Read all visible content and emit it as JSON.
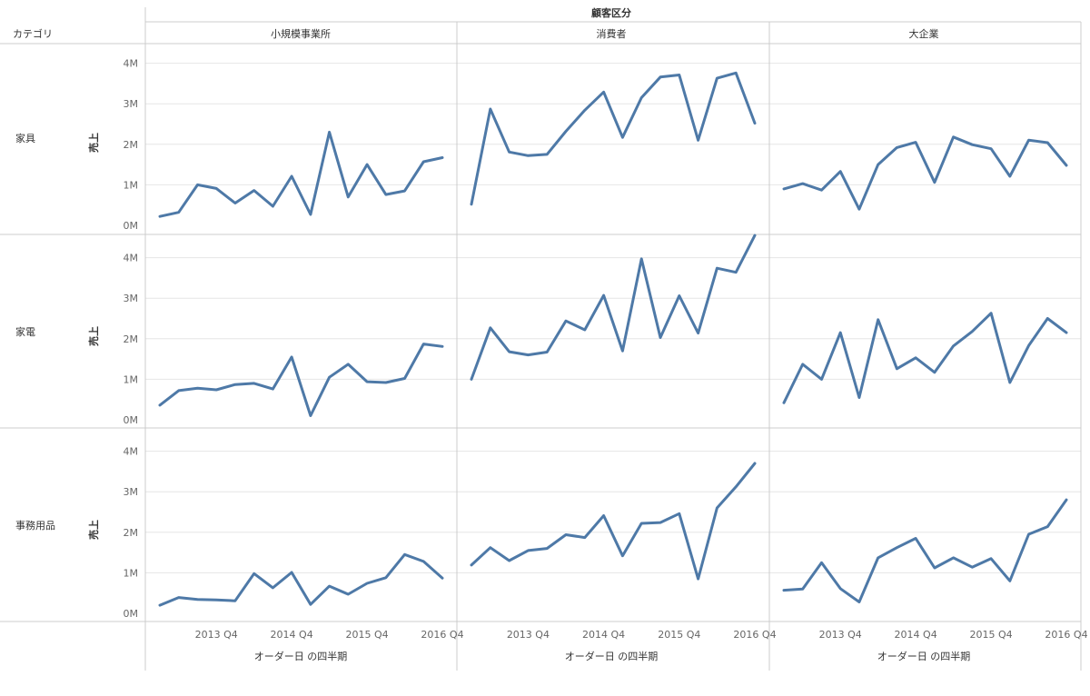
{
  "header": {
    "column_field": "顧客区分",
    "row_field": "カテゴリ"
  },
  "columns": [
    "小規模事業所",
    "消費者",
    "大企業"
  ],
  "rows": [
    "家具",
    "家電",
    "事務用品"
  ],
  "y_axis_label": "売上",
  "x_axis_label": "オーダー日 の四半期",
  "y_ticks": [
    "0M",
    "1M",
    "2M",
    "3M",
    "4M"
  ],
  "x_ticks": [
    "2013 Q4",
    "2014 Q4",
    "2015 Q4",
    "2016 Q4"
  ],
  "colors": {
    "line": "#4e79a7",
    "grid": "#e6e6e6",
    "divider": "#cccccc"
  },
  "chart_data": {
    "type": "line",
    "title": "",
    "xlabel": "オーダー日 の四半期",
    "ylabel": "売上",
    "ylim": [
      0,
      4.5
    ],
    "y_unit": "M",
    "x": [
      "2013 Q1",
      "2013 Q2",
      "2013 Q3",
      "2013 Q4",
      "2014 Q1",
      "2014 Q2",
      "2014 Q3",
      "2014 Q4",
      "2015 Q1",
      "2015 Q2",
      "2015 Q3",
      "2015 Q4",
      "2016 Q1",
      "2016 Q2",
      "2016 Q3",
      "2016 Q4"
    ],
    "x_tick_labels": [
      "2013 Q4",
      "2014 Q4",
      "2015 Q4",
      "2016 Q4"
    ],
    "grid": true,
    "panels": [
      {
        "row": "家具",
        "column": "小規模事業所",
        "values": [
          0.22,
          0.32,
          1.0,
          0.91,
          0.55,
          0.86,
          0.47,
          1.21,
          0.27,
          2.3,
          0.7,
          1.5,
          0.76,
          0.85,
          1.57,
          1.67
        ]
      },
      {
        "row": "家具",
        "column": "消費者",
        "values": [
          0.52,
          2.87,
          1.81,
          1.72,
          1.75,
          2.32,
          2.84,
          3.29,
          2.17,
          3.15,
          3.66,
          3.71,
          2.1,
          3.63,
          3.76,
          2.52
        ]
      },
      {
        "row": "家具",
        "column": "大企業",
        "values": [
          0.9,
          1.03,
          0.87,
          1.33,
          0.4,
          1.5,
          1.92,
          2.05,
          1.06,
          2.18,
          1.99,
          1.89,
          1.21,
          2.1,
          2.04,
          1.48
        ]
      },
      {
        "row": "家電",
        "column": "小規模事業所",
        "values": [
          0.36,
          0.72,
          0.78,
          0.74,
          0.87,
          0.9,
          0.76,
          1.55,
          0.1,
          1.05,
          1.37,
          0.94,
          0.92,
          1.02,
          1.87,
          1.81
        ]
      },
      {
        "row": "家電",
        "column": "消費者",
        "values": [
          1.0,
          2.27,
          1.68,
          1.6,
          1.67,
          2.44,
          2.22,
          3.07,
          1.7,
          3.97,
          2.03,
          3.06,
          2.14,
          3.74,
          3.64,
          4.55
        ]
      },
      {
        "row": "家電",
        "column": "大企業",
        "values": [
          0.42,
          1.37,
          1.0,
          2.15,
          0.55,
          2.47,
          1.26,
          1.53,
          1.17,
          1.82,
          2.18,
          2.63,
          0.92,
          1.83,
          2.5,
          2.15
        ]
      },
      {
        "row": "事務用品",
        "column": "小規模事業所",
        "values": [
          0.2,
          0.39,
          0.34,
          0.33,
          0.31,
          0.98,
          0.63,
          1.01,
          0.22,
          0.67,
          0.47,
          0.74,
          0.88,
          1.45,
          1.28,
          0.87
        ]
      },
      {
        "row": "事務用品",
        "column": "消費者",
        "values": [
          1.19,
          1.62,
          1.3,
          1.55,
          1.6,
          1.94,
          1.87,
          2.41,
          1.42,
          2.22,
          2.24,
          2.46,
          0.85,
          2.6,
          3.12,
          3.7
        ]
      },
      {
        "row": "事務用品",
        "column": "大企業",
        "values": [
          0.57,
          0.6,
          1.25,
          0.61,
          0.28,
          1.37,
          1.62,
          1.85,
          1.12,
          1.37,
          1.14,
          1.35,
          0.8,
          1.95,
          2.14,
          2.8
        ]
      }
    ]
  }
}
